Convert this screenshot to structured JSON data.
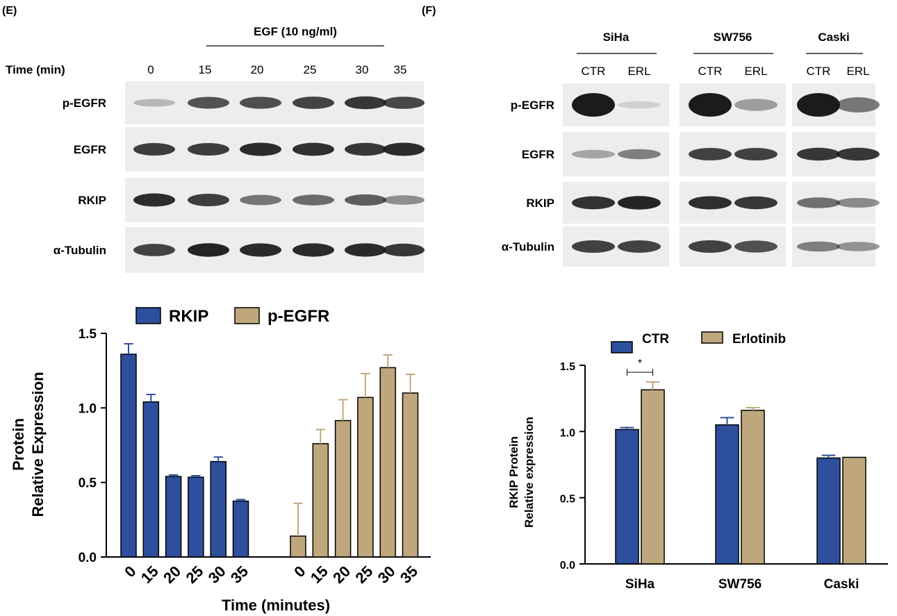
{
  "panel_labels": {
    "e": "(E)",
    "f": "(F)"
  },
  "colors": {
    "blue": "#2d4f9c",
    "tan": "#bfa77d",
    "line": "#000000",
    "band": "#1b1b1b",
    "blot_bg": "#ededed"
  },
  "blot_e": {
    "treatment_label": "EGF (10 ng/ml)",
    "time_label": "Time (min)",
    "times": [
      "0",
      "15",
      "20",
      "25",
      "30",
      "35"
    ],
    "rows": [
      {
        "label": "p-EGFR",
        "intensity": [
          0.12,
          0.7,
          0.72,
          0.78,
          0.85,
          0.75
        ]
      },
      {
        "label": "EGFR",
        "intensity": [
          0.8,
          0.8,
          0.9,
          0.88,
          0.85,
          0.9
        ]
      },
      {
        "label": "RKIP",
        "intensity": [
          0.9,
          0.8,
          0.5,
          0.55,
          0.62,
          0.35
        ]
      },
      {
        "label": "α-Tubulin",
        "intensity": [
          0.78,
          0.95,
          0.92,
          0.92,
          0.92,
          0.85
        ]
      }
    ]
  },
  "blot_f": {
    "cell_lines": [
      "SiHa",
      "SW756",
      "Caski"
    ],
    "conditions": [
      "CTR",
      "ERL"
    ],
    "rows": [
      {
        "label": "p-EGFR",
        "intensity": [
          [
            1.0,
            0.02
          ],
          [
            1.0,
            0.3
          ],
          [
            1.0,
            0.5
          ]
        ]
      },
      {
        "label": "EGFR",
        "intensity": [
          [
            0.25,
            0.45
          ],
          [
            0.8,
            0.8
          ],
          [
            0.85,
            0.85
          ]
        ]
      },
      {
        "label": "RKIP",
        "intensity": [
          [
            0.88,
            0.95
          ],
          [
            0.9,
            0.85
          ],
          [
            0.55,
            0.4
          ]
        ]
      },
      {
        "label": "α-Tubulin",
        "intensity": [
          [
            0.8,
            0.78
          ],
          [
            0.8,
            0.72
          ],
          [
            0.45,
            0.35
          ]
        ]
      }
    ]
  },
  "chart_data": [
    {
      "type": "bar",
      "ylabel": [
        "Protein",
        "Relative Expression"
      ],
      "xlabel": "Time (minutes)",
      "ylim": [
        0,
        1.5
      ],
      "yticks": [
        "0.0",
        "0.5",
        "1.0",
        "1.5"
      ],
      "legend_position": "top",
      "groups": [
        {
          "name": "RKIP",
          "color": "#2d4f9c",
          "categories": [
            "0",
            "15",
            "20",
            "25",
            "30",
            "35"
          ],
          "values": [
            1.36,
            1.04,
            0.54,
            0.535,
            0.64,
            0.375
          ],
          "errors": [
            0.07,
            0.05,
            0.01,
            0.01,
            0.03,
            0.01
          ]
        },
        {
          "name": "p-EGFR",
          "color": "#bfa77d",
          "categories": [
            "0",
            "15",
            "20",
            "25",
            "30",
            "35"
          ],
          "values": [
            0.14,
            0.76,
            0.915,
            1.07,
            1.27,
            1.1
          ],
          "errors": [
            0.22,
            0.095,
            0.14,
            0.16,
            0.085,
            0.125
          ]
        }
      ]
    },
    {
      "type": "bar",
      "ylabel": [
        "RKIP Protein",
        "Relative expression"
      ],
      "xlabel": "",
      "ylim": [
        0,
        1.5
      ],
      "yticks": [
        "0.0",
        "0.5",
        "1.0",
        "1.5"
      ],
      "legend_position": "top",
      "categories": [
        "SiHa",
        "SW756",
        "Caski"
      ],
      "series": [
        {
          "name": "CTR",
          "color": "#2d4f9c",
          "values": [
            1.015,
            1.05,
            0.8
          ],
          "errors": [
            0.015,
            0.055,
            0.02
          ]
        },
        {
          "name": "Erlotinib",
          "color": "#bfa77d",
          "values": [
            1.315,
            1.16,
            0.805
          ],
          "errors": [
            0.06,
            0.02,
            0.0
          ]
        }
      ],
      "significance": {
        "label": "*",
        "from_category": 0
      }
    }
  ]
}
